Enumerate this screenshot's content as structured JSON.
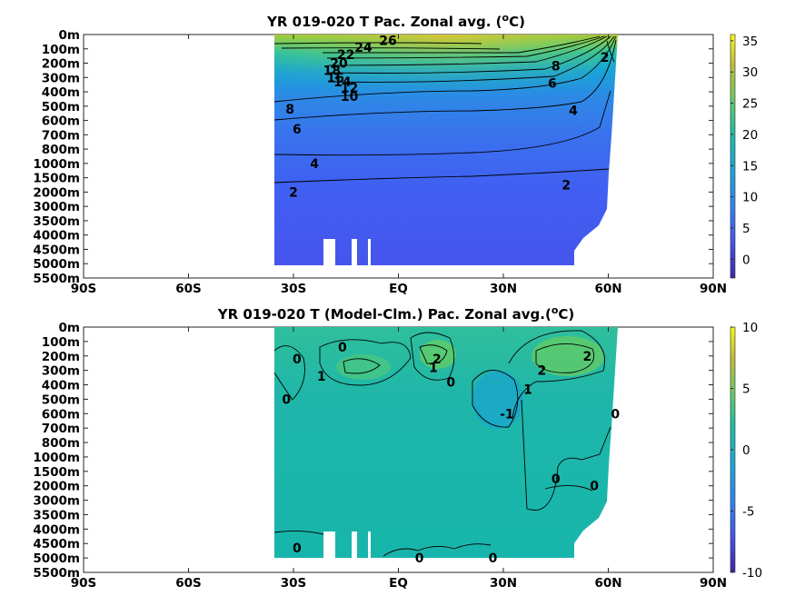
{
  "chart_data": [
    {
      "type": "heatmap",
      "title": "YR 019-020 T Pac. Zonal avg. (",
      "title_sup": "o",
      "title_tail": "C)",
      "y_tick_labels": [
        "0m",
        "100m",
        "200m",
        "300m",
        "400m",
        "500m",
        "600m",
        "700m",
        "800m",
        "1000m",
        "1500m",
        "2000m",
        "3000m",
        "3500m",
        "4000m",
        "4500m",
        "5000m",
        "5500m"
      ],
      "x_tick_labels": [
        "90S",
        "60S",
        "30S",
        "EQ",
        "30N",
        "60N",
        "90N"
      ],
      "xlim": [
        -90,
        90
      ],
      "colorbar": {
        "min": -3,
        "max": 36,
        "ticks": [
          0,
          5,
          10,
          15,
          20,
          25,
          30,
          35
        ]
      },
      "contour_labels": [
        {
          "text": "26",
          "lat": -3,
          "depth_index": 0.4
        },
        {
          "text": "24",
          "lat": -10,
          "depth_index": 0.9
        },
        {
          "text": "22",
          "lat": -15,
          "depth_index": 1.4
        },
        {
          "text": "20",
          "lat": -17,
          "depth_index": 2.0
        },
        {
          "text": "18",
          "lat": -19,
          "depth_index": 2.5
        },
        {
          "text": "16",
          "lat": -18,
          "depth_index": 3.0
        },
        {
          "text": "14",
          "lat": -16,
          "depth_index": 3.3
        },
        {
          "text": "12",
          "lat": -14,
          "depth_index": 3.7
        },
        {
          "text": "10",
          "lat": -14,
          "depth_index": 4.3
        },
        {
          "text": "8",
          "lat": -31,
          "depth_index": 5.2
        },
        {
          "text": "6",
          "lat": -29,
          "depth_index": 6.6
        },
        {
          "text": "4",
          "lat": -24,
          "depth_index": 9.0
        },
        {
          "text": "2",
          "lat": -30,
          "depth_index": 11.0
        },
        {
          "text": "8",
          "lat": 45,
          "depth_index": 2.2
        },
        {
          "text": "6",
          "lat": 44,
          "depth_index": 3.4
        },
        {
          "text": "4",
          "lat": 50,
          "depth_index": 5.3
        },
        {
          "text": "2",
          "lat": 48,
          "depth_index": 10.5
        },
        {
          "text": "2",
          "lat": 59,
          "depth_index": 1.6
        }
      ]
    },
    {
      "type": "heatmap",
      "title": "YR 019-020 T (Model-Clm.) Pac. Zonal avg.(",
      "title_sup": "o",
      "title_tail": "C)",
      "y_tick_labels": [
        "0m",
        "100m",
        "200m",
        "300m",
        "400m",
        "500m",
        "600m",
        "700m",
        "800m",
        "1000m",
        "1500m",
        "2000m",
        "3000m",
        "3500m",
        "4000m",
        "4500m",
        "5000m",
        "5500m"
      ],
      "x_tick_labels": [
        "90S",
        "60S",
        "30S",
        "EQ",
        "30N",
        "60N",
        "90N"
      ],
      "xlim": [
        -90,
        90
      ],
      "colorbar": {
        "min": -10,
        "max": 10,
        "ticks": [
          10,
          5,
          0,
          -5,
          -10
        ]
      },
      "contour_labels": [
        {
          "text": "0",
          "lat": -16,
          "depth_index": 1.4
        },
        {
          "text": "0",
          "lat": -29,
          "depth_index": 2.2
        },
        {
          "text": "1",
          "lat": -22,
          "depth_index": 3.4
        },
        {
          "text": "0",
          "lat": -32,
          "depth_index": 5.0
        },
        {
          "text": "2",
          "lat": 11,
          "depth_index": 2.2
        },
        {
          "text": "1",
          "lat": 10,
          "depth_index": 2.8
        },
        {
          "text": "0",
          "lat": 15,
          "depth_index": 3.8
        },
        {
          "text": "-1",
          "lat": 31,
          "depth_index": 6.0
        },
        {
          "text": "1",
          "lat": 37,
          "depth_index": 4.3
        },
        {
          "text": "2",
          "lat": 41,
          "depth_index": 3.0
        },
        {
          "text": "2",
          "lat": 54,
          "depth_index": 2.0
        },
        {
          "text": "0",
          "lat": 62,
          "depth_index": 6.0
        },
        {
          "text": "0",
          "lat": 45,
          "depth_index": 10.5
        },
        {
          "text": "0",
          "lat": 56,
          "depth_index": 11.0
        },
        {
          "text": "0",
          "lat": -29,
          "depth_index": 15.3
        },
        {
          "text": "0",
          "lat": 6,
          "depth_index": 16.0
        },
        {
          "text": "0",
          "lat": 27,
          "depth_index": 16.0
        }
      ]
    }
  ]
}
